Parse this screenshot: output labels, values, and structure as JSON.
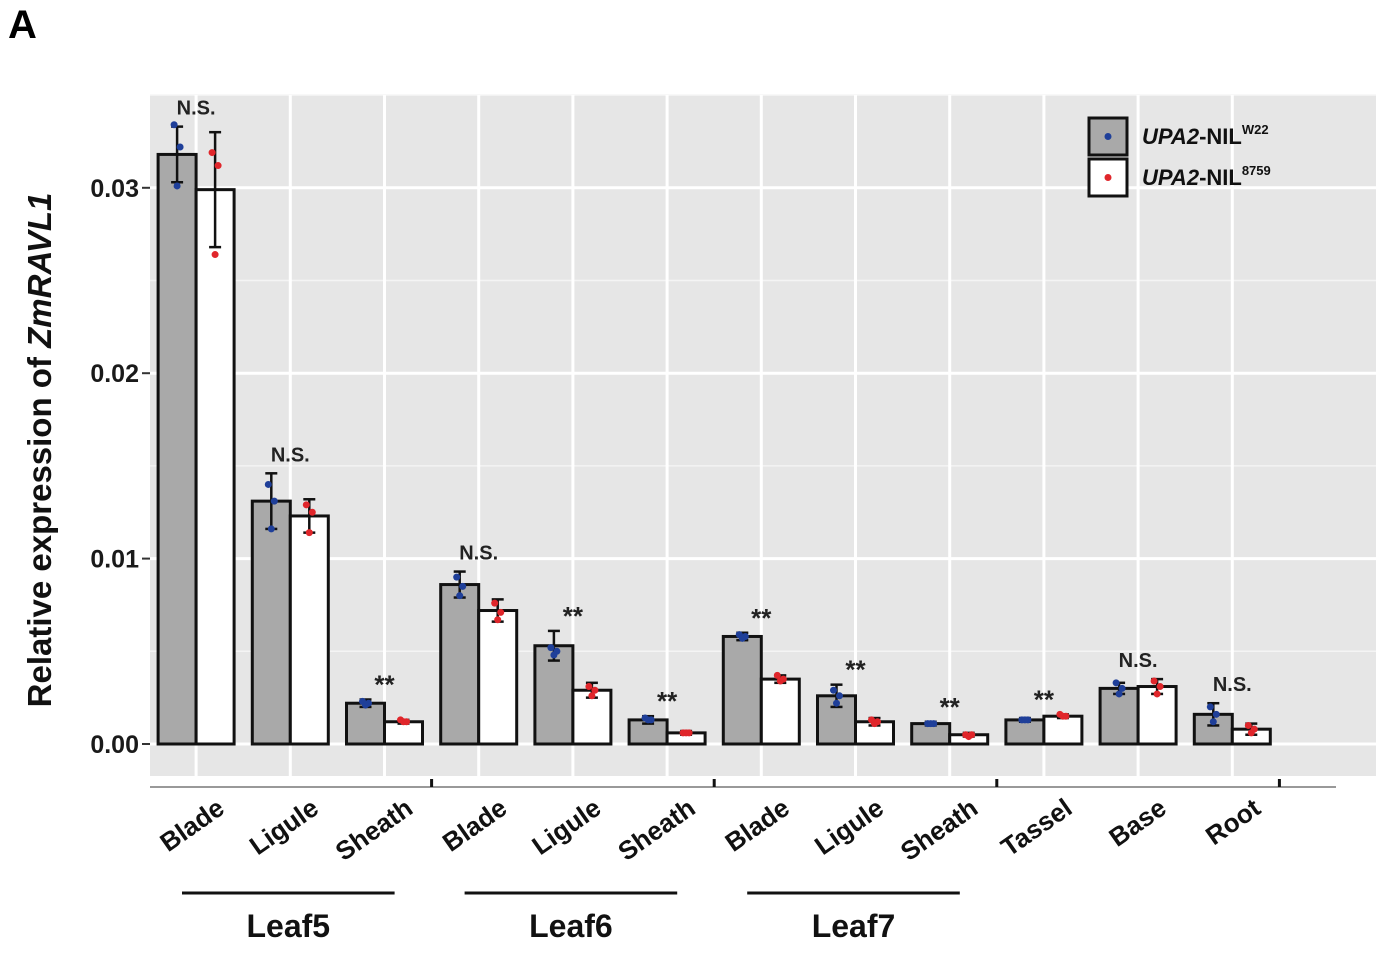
{
  "panel_label": "A",
  "chart_data": {
    "type": "bar",
    "title": "",
    "xlabel": "",
    "ylabel": {
      "before": "Relative expression of ",
      "gene": "ZmRAVL1"
    },
    "ylim": [
      -0.0016,
      0.0351
    ],
    "yticks": [
      {
        "value": 0.0,
        "label": "0.00"
      },
      {
        "value": 0.01,
        "label": "0.01"
      },
      {
        "value": 0.02,
        "label": "0.02"
      },
      {
        "value": 0.03,
        "label": "0.03"
      }
    ],
    "grid": true,
    "legend_position": "top-right",
    "categories": [
      "Blade",
      "Ligule",
      "Sheath",
      "Blade",
      "Ligule",
      "Sheath",
      "Blade",
      "Ligule",
      "Sheath",
      "Tassel",
      "Base",
      "Root"
    ],
    "category_groups": [
      {
        "label": "Leaf5",
        "start": 0,
        "end": 2
      },
      {
        "label": "Leaf6",
        "start": 3,
        "end": 5
      },
      {
        "label": "Leaf7",
        "start": 6,
        "end": 8
      }
    ],
    "series": [
      {
        "name": {
          "gene": "UPA2",
          "suffix": "-NIL",
          "sup": "W22"
        },
        "fill": "#a9a9a9",
        "dot_color": "#1f3f99",
        "values": [
          0.0318,
          0.0131,
          0.0022,
          0.0086,
          0.0053,
          0.0013,
          0.0058,
          0.0026,
          0.0011,
          0.0013,
          0.003,
          0.0016
        ],
        "errors": [
          0.0015,
          0.0015,
          0.0002,
          0.0007,
          0.0008,
          0.0002,
          0.0002,
          0.0006,
          0.0001,
          0.0001,
          0.0003,
          0.0006
        ],
        "points": [
          [
            0.0334,
            0.0322,
            0.0301
          ],
          [
            0.014,
            0.0131,
            0.0116
          ],
          [
            0.0023,
            0.0022,
            0.0021
          ],
          [
            0.009,
            0.0085,
            0.008
          ],
          [
            0.0052,
            0.005,
            0.0048
          ],
          [
            0.0014,
            0.0013,
            0.0013
          ],
          [
            0.0059,
            0.0058,
            0.0057
          ],
          [
            0.0029,
            0.0026,
            0.0022
          ],
          [
            0.0011,
            0.0011,
            0.0011
          ],
          [
            0.0013,
            0.0013,
            0.0013
          ],
          [
            0.0033,
            0.003,
            0.0027
          ],
          [
            0.002,
            0.0016,
            0.0012
          ]
        ]
      },
      {
        "name": {
          "gene": "UPA2",
          "suffix": "-NIL",
          "sup": "8759"
        },
        "fill": "#ffffff",
        "dot_color": "#e0262b",
        "values": [
          0.0299,
          0.0123,
          0.0012,
          0.0072,
          0.0029,
          0.0006,
          0.0035,
          0.0012,
          0.0005,
          0.0015,
          0.0031,
          0.0008
        ],
        "errors": [
          0.0031,
          0.0009,
          0.0001,
          0.0006,
          0.0004,
          0.0001,
          0.0002,
          0.0002,
          0.0001,
          0.0001,
          0.0004,
          0.0003
        ],
        "points": [
          [
            0.0319,
            0.0312,
            0.0264
          ],
          [
            0.0129,
            0.0125,
            0.0114
          ],
          [
            0.0013,
            0.0012,
            0.0012
          ],
          [
            0.0076,
            0.0071,
            0.0067
          ],
          [
            0.0031,
            0.0029,
            0.0026
          ],
          [
            0.0006,
            0.0006,
            0.0006
          ],
          [
            0.0037,
            0.0035,
            0.0034
          ],
          [
            0.0013,
            0.0012,
            0.0011
          ],
          [
            0.0005,
            0.0005,
            0.0004
          ],
          [
            0.0016,
            0.0015,
            0.0015
          ],
          [
            0.0034,
            0.0031,
            0.0027
          ],
          [
            0.001,
            0.0008,
            0.0006
          ]
        ]
      }
    ],
    "significance": [
      "N.S.",
      "N.S.",
      "**",
      "N.S.",
      "**",
      "**",
      "**",
      "**",
      "**",
      "**",
      "N.S.",
      "N.S."
    ]
  }
}
